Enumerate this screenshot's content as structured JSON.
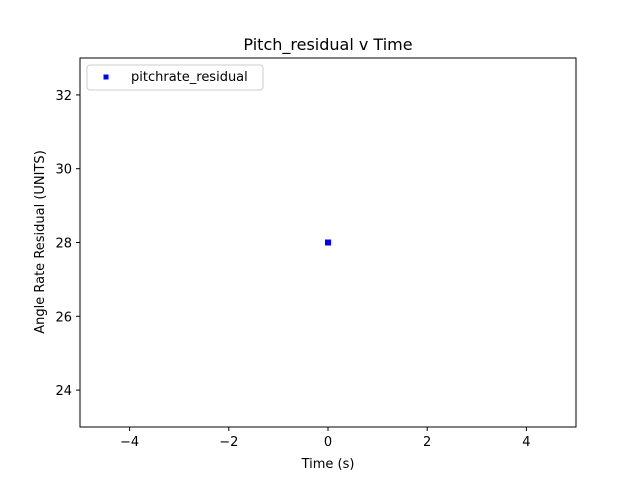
{
  "chart_data": {
    "type": "scatter",
    "title": "Pitch_residual v Time",
    "xlabel": "Time (s)",
    "ylabel": "Angle Rate Residual (UNITS)",
    "xlim": [
      -5,
      5
    ],
    "ylim": [
      23,
      33
    ],
    "xticks": [
      -4,
      -2,
      0,
      2,
      4
    ],
    "xtick_labels": [
      "−4",
      "−2",
      "0",
      "2",
      "4"
    ],
    "yticks": [
      24,
      26,
      28,
      30,
      32
    ],
    "ytick_labels": [
      "24",
      "26",
      "28",
      "30",
      "32"
    ],
    "grid": false,
    "legend_position": "upper left",
    "series": [
      {
        "name": "pitchrate_residual",
        "color": "#0000ff",
        "marker": "square",
        "points": [
          {
            "x": 0,
            "y": 28
          }
        ]
      }
    ]
  }
}
